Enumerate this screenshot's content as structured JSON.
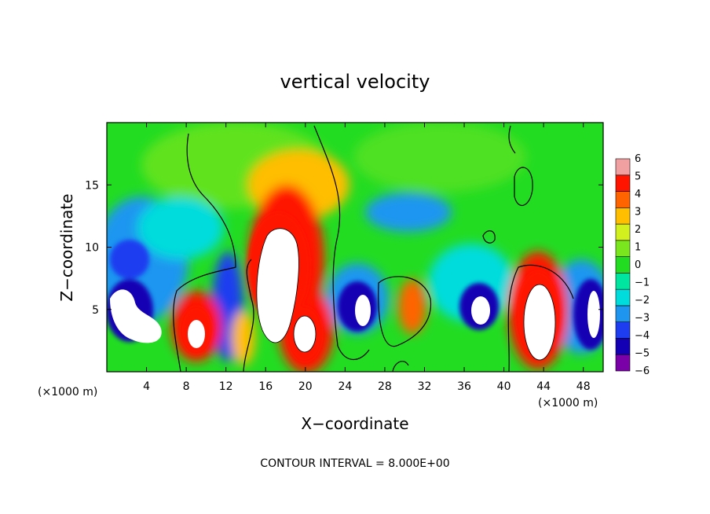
{
  "chart_data": {
    "type": "heatmap",
    "title": "vertical velocity",
    "xlabel": "X−coordinate",
    "ylabel": "Z−coordinate",
    "x_unit_left": "(×1000 m)",
    "x_unit_right": "(×1000 m)",
    "xlim": [
      0,
      50
    ],
    "ylim": [
      0,
      20
    ],
    "x_ticks": [
      4,
      8,
      12,
      16,
      20,
      24,
      28,
      32,
      36,
      40,
      44,
      48
    ],
    "y_ticks": [
      5,
      10,
      15
    ],
    "colorbar": {
      "ticks": [
        "6",
        "5",
        "4",
        "3",
        "2",
        "1",
        "0",
        "−1",
        "−2",
        "−3",
        "−4",
        "−5",
        "−6"
      ],
      "vmin": -6,
      "vmax": 6,
      "colors": [
        "#7a00a8",
        "#1400b4",
        "#1e3cf0",
        "#1e96f0",
        "#00dcdc",
        "#00e6a0",
        "#22dc22",
        "#7ae61e",
        "#d2f01e",
        "#ffbe00",
        "#ff6400",
        "#ff1400",
        "#f0a0a0"
      ]
    },
    "features": [
      {
        "kind": "updraft",
        "x": 17.8,
        "z": 7.0,
        "peak": 6
      },
      {
        "kind": "updraft",
        "x": 20.2,
        "z": 3.2,
        "peak": 6
      },
      {
        "kind": "updraft",
        "x": 9.2,
        "z": 2.8,
        "peak": 6
      },
      {
        "kind": "updraft",
        "x": 43.2,
        "z": 4.8,
        "peak": 6
      },
      {
        "kind": "updraft",
        "x": 30.5,
        "z": 5.5,
        "peak": 3
      },
      {
        "kind": "downdraft",
        "x": 2.4,
        "z": 5.0,
        "peak": -6
      },
      {
        "kind": "downdraft",
        "x": 25.6,
        "z": 4.6,
        "peak": -6
      },
      {
        "kind": "downdraft",
        "x": 37.4,
        "z": 5.0,
        "peak": -6
      },
      {
        "kind": "downdraft",
        "x": 48.6,
        "z": 4.8,
        "peak": -6
      },
      {
        "kind": "downdraft",
        "x": 12.8,
        "z": 3.5,
        "peak": -4
      }
    ],
    "note": "CONTOUR INTERVAL = 8.000E+00"
  }
}
